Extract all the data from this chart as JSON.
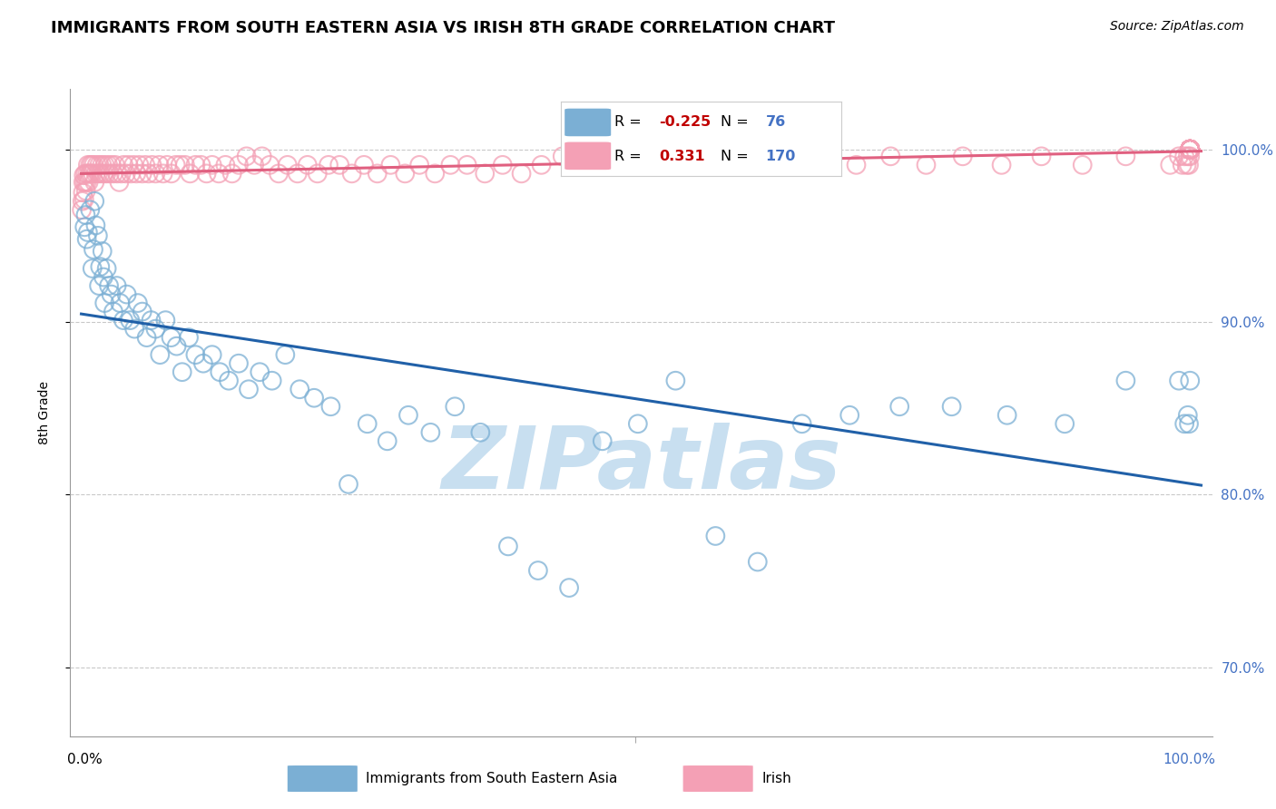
{
  "title": "IMMIGRANTS FROM SOUTH EASTERN ASIA VS IRISH 8TH GRADE CORRELATION CHART",
  "source": "Source: ZipAtlas.com",
  "ylabel": "8th Grade",
  "y_ticks": [
    70.0,
    80.0,
    90.0,
    100.0
  ],
  "x_lim": [
    -1.0,
    102.0
  ],
  "y_lim": [
    66.0,
    103.5
  ],
  "blue_label": "Immigrants from South Eastern Asia",
  "pink_label": "Irish",
  "blue_R": -0.225,
  "blue_N": 76,
  "pink_R": 0.331,
  "pink_N": 170,
  "blue_color": "#7bafd4",
  "pink_color": "#f4a0b5",
  "blue_line_color": "#2060a8",
  "pink_line_color": "#e06080",
  "watermark": "ZIPatlas",
  "watermark_color": "#c8dff0",
  "grid_color": "#bbbbbb",
  "background_color": "#ffffff",
  "blue_scatter_x": [
    0.3,
    0.4,
    0.5,
    0.6,
    0.8,
    1.0,
    1.1,
    1.2,
    1.3,
    1.5,
    1.6,
    1.7,
    1.9,
    2.0,
    2.1,
    2.3,
    2.5,
    2.7,
    2.9,
    3.2,
    3.5,
    3.8,
    4.1,
    4.4,
    4.8,
    5.1,
    5.5,
    5.9,
    6.3,
    6.7,
    7.1,
    7.6,
    8.1,
    8.6,
    9.1,
    9.7,
    10.3,
    11.0,
    11.8,
    12.5,
    13.3,
    14.2,
    15.1,
    16.1,
    17.2,
    18.4,
    19.7,
    21.0,
    22.5,
    24.1,
    25.8,
    27.6,
    29.5,
    31.5,
    33.7,
    36.0,
    38.5,
    41.2,
    44.0,
    47.0,
    50.2,
    53.6,
    57.2,
    61.0,
    65.0,
    69.3,
    73.8,
    78.5,
    83.5,
    88.7,
    94.2,
    99.0,
    99.5,
    99.8,
    99.9,
    100.0
  ],
  "blue_scatter_y": [
    95.5,
    96.2,
    94.8,
    95.2,
    96.5,
    93.1,
    94.2,
    97.0,
    95.6,
    95.0,
    92.1,
    93.2,
    94.1,
    92.6,
    91.1,
    93.1,
    92.1,
    91.6,
    90.6,
    92.1,
    91.1,
    90.1,
    91.6,
    90.1,
    89.6,
    91.1,
    90.6,
    89.1,
    90.1,
    89.6,
    88.1,
    90.1,
    89.1,
    88.6,
    87.1,
    89.1,
    88.1,
    87.6,
    88.1,
    87.1,
    86.6,
    87.6,
    86.1,
    87.1,
    86.6,
    88.1,
    86.1,
    85.6,
    85.1,
    80.6,
    84.1,
    83.1,
    84.6,
    83.6,
    85.1,
    83.6,
    77.0,
    75.6,
    74.6,
    83.1,
    84.1,
    86.6,
    77.6,
    76.1,
    84.1,
    84.6,
    85.1,
    85.1,
    84.6,
    84.1,
    86.6,
    86.6,
    84.1,
    84.6,
    84.1,
    86.6
  ],
  "pink_scatter_x": [
    0.05,
    0.1,
    0.15,
    0.18,
    0.22,
    0.27,
    0.32,
    0.37,
    0.42,
    0.48,
    0.54,
    0.6,
    0.66,
    0.73,
    0.8,
    0.87,
    0.95,
    1.03,
    1.12,
    1.21,
    1.31,
    1.41,
    1.52,
    1.63,
    1.75,
    1.87,
    2.0,
    2.13,
    2.27,
    2.42,
    2.57,
    2.73,
    2.89,
    3.06,
    3.24,
    3.43,
    3.62,
    3.82,
    4.03,
    4.25,
    4.48,
    4.72,
    4.97,
    5.23,
    5.5,
    5.78,
    6.07,
    6.38,
    6.7,
    7.03,
    7.38,
    7.74,
    8.12,
    8.52,
    8.93,
    9.36,
    9.81,
    10.3,
    10.8,
    11.3,
    11.8,
    12.4,
    13.0,
    13.6,
    14.2,
    14.9,
    15.6,
    16.3,
    17.0,
    17.8,
    18.6,
    19.5,
    20.4,
    21.3,
    22.3,
    23.3,
    24.4,
    25.5,
    26.7,
    27.9,
    29.2,
    30.5,
    31.9,
    33.3,
    34.8,
    36.4,
    38.0,
    39.7,
    41.5,
    43.4,
    45.3,
    47.4,
    49.5,
    51.7,
    54.0,
    56.4,
    58.9,
    61.5,
    64.2,
    67.0,
    69.9,
    73.0,
    76.2,
    79.5,
    83.0,
    86.6,
    90.3,
    94.2,
    98.2,
    99.0,
    99.3,
    99.5,
    99.7,
    99.8,
    99.9,
    100.0,
    100.0,
    100.0,
    100.0,
    100.0,
    100.0,
    100.0,
    100.0,
    100.0,
    100.0,
    100.0,
    100.0,
    100.0,
    100.0,
    100.0,
    100.0,
    100.0,
    100.0,
    100.0,
    100.0,
    100.0,
    100.0,
    100.0,
    100.0,
    100.0,
    100.0,
    100.0,
    100.0,
    100.0,
    100.0,
    100.0,
    100.0,
    100.0,
    100.0,
    100.0,
    100.0,
    100.0,
    100.0,
    100.0,
    100.0,
    100.0,
    100.0,
    100.0,
    100.0,
    100.0,
    100.0,
    100.0,
    100.0,
    100.0,
    100.0,
    100.0
  ],
  "pink_scatter_y": [
    96.5,
    97.0,
    97.5,
    98.1,
    98.5,
    97.1,
    98.1,
    98.6,
    97.6,
    98.1,
    98.6,
    99.1,
    98.1,
    98.6,
    99.1,
    98.6,
    99.1,
    98.6,
    99.1,
    98.1,
    98.6,
    99.1,
    98.6,
    99.1,
    98.6,
    99.1,
    98.6,
    99.1,
    98.6,
    99.1,
    98.6,
    99.1,
    98.6,
    99.1,
    98.6,
    98.1,
    98.6,
    99.1,
    98.6,
    99.1,
    98.6,
    99.1,
    98.6,
    99.1,
    98.6,
    99.1,
    98.6,
    99.1,
    98.6,
    99.1,
    98.6,
    99.1,
    98.6,
    99.1,
    99.1,
    99.1,
    98.6,
    99.1,
    99.1,
    98.6,
    99.1,
    98.6,
    99.1,
    98.6,
    99.1,
    99.6,
    99.1,
    99.6,
    99.1,
    98.6,
    99.1,
    98.6,
    99.1,
    98.6,
    99.1,
    99.1,
    98.6,
    99.1,
    98.6,
    99.1,
    98.6,
    99.1,
    98.6,
    99.1,
    99.1,
    98.6,
    99.1,
    98.6,
    99.1,
    99.6,
    99.1,
    99.6,
    99.1,
    99.6,
    99.1,
    99.6,
    99.1,
    99.6,
    99.1,
    99.6,
    99.1,
    99.6,
    99.1,
    99.6,
    99.1,
    99.6,
    99.1,
    99.6,
    99.1,
    99.6,
    99.1,
    99.6,
    99.1,
    99.6,
    99.1,
    99.6,
    100.0,
    100.0,
    100.0,
    100.0,
    100.0,
    100.0,
    100.0,
    100.0,
    100.0,
    100.0,
    100.0,
    100.0,
    100.0,
    100.0,
    100.0,
    100.0,
    100.0,
    100.0,
    100.0,
    100.0,
    100.0,
    100.0,
    100.0,
    100.0,
    100.0,
    100.0,
    100.0,
    100.0,
    100.0,
    100.0,
    100.0,
    100.0,
    100.0,
    100.0,
    100.0,
    100.0,
    100.0,
    100.0,
    100.0,
    100.0,
    100.0,
    100.0,
    100.0,
    100.0,
    100.0,
    100.0,
    100.0,
    100.0,
    100.0,
    100.0
  ]
}
